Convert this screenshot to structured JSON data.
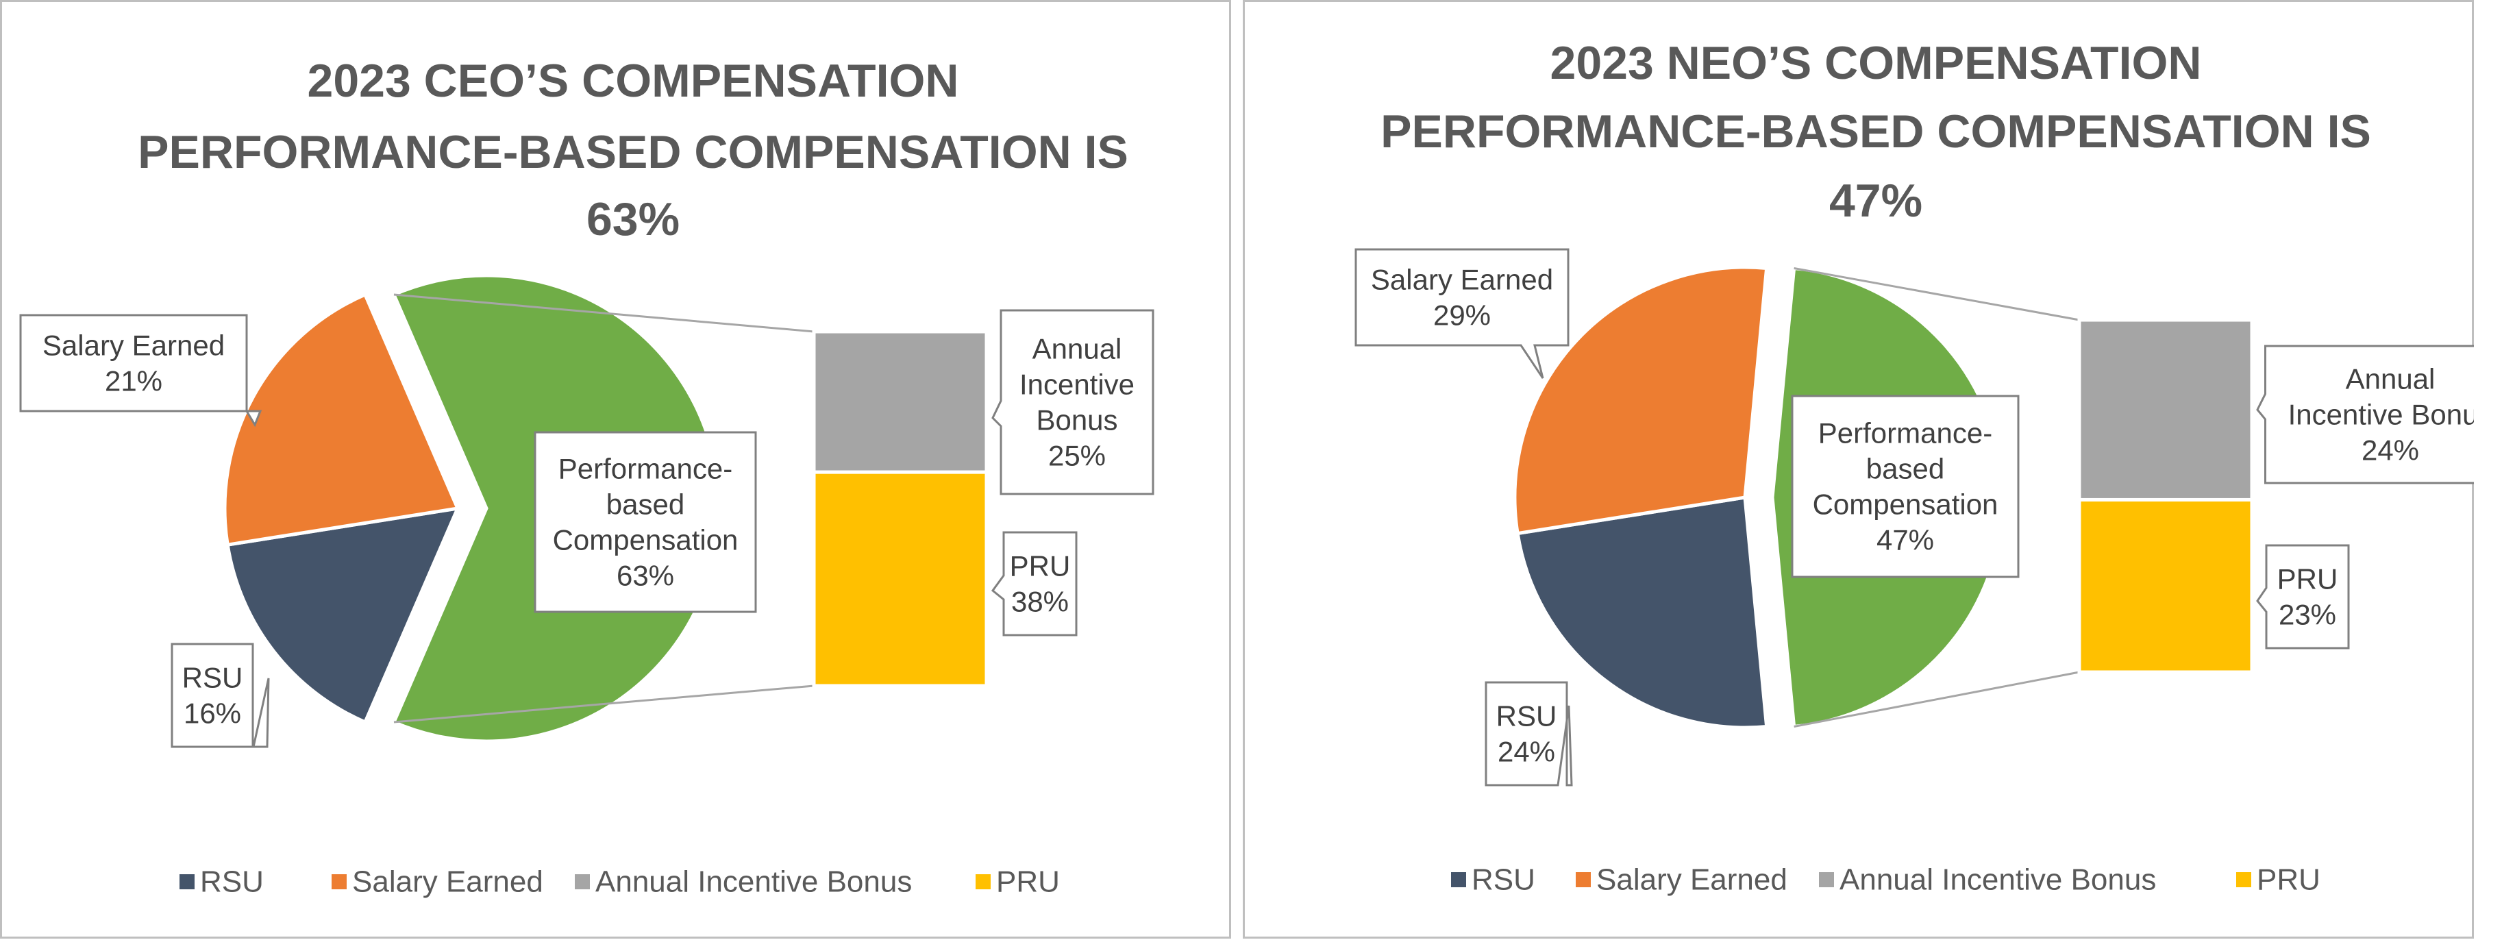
{
  "chart_data": [
    {
      "type": "bar-of-pie",
      "title_lines": [
        "2023 CEO’S COMPENSATION",
        "PERFORMANCE-BASED COMPENSATION IS",
        "63%"
      ],
      "pie": [
        {
          "name": "RSU",
          "value": 16,
          "label": "RSU",
          "pct": "16%"
        },
        {
          "name": "Salary Earned",
          "value": 21,
          "label": "Salary Earned",
          "pct": "21%"
        },
        {
          "name": "Performance-based Compensation",
          "value": 63,
          "label_lines": [
            "Performance-",
            "based",
            "Compensation"
          ],
          "pct": "63%"
        }
      ],
      "bar": [
        {
          "name": "Annual Incentive Bonus",
          "value": 25,
          "label_lines": [
            "Annual",
            "Incentive",
            "Bonus"
          ],
          "pct": "25%"
        },
        {
          "name": "PRU",
          "value": 38,
          "label_lines": [
            "PRU"
          ],
          "pct": "38%"
        }
      ],
      "legend": [
        "RSU",
        "Salary Earned",
        "Annual Incentive Bonus",
        "PRU"
      ]
    },
    {
      "type": "bar-of-pie",
      "title_lines": [
        "2023 NEO’S COMPENSATION",
        "PERFORMANCE-BASED COMPENSATION IS",
        "47%"
      ],
      "pie": [
        {
          "name": "RSU",
          "value": 24,
          "label": "RSU",
          "pct": "24%"
        },
        {
          "name": "Salary Earned",
          "value": 29,
          "label": "Salary Earned",
          "pct": "29%"
        },
        {
          "name": "Performance-based Compensation",
          "value": 47,
          "label_lines": [
            "Performance-",
            "based",
            "Compensation"
          ],
          "pct": "47%"
        }
      ],
      "bar": [
        {
          "name": "Annual Incentive Bonus",
          "value": 24,
          "label_lines": [
            "Annual",
            "Incentive Bonus"
          ],
          "pct": "24%"
        },
        {
          "name": "PRU",
          "value": 23,
          "label_lines": [
            "PRU"
          ],
          "pct": "23%"
        }
      ],
      "legend": [
        "RSU",
        "Salary Earned",
        "Annual Incentive Bonus",
        "PRU"
      ]
    }
  ],
  "colors": {
    "RSU": "#44546a",
    "Salary Earned": "#ed7d31",
    "Performance-based Compensation": "#70ad47",
    "Annual Incentive Bonus": "#a5a5a5",
    "PRU": "#ffc000",
    "title": "#595959",
    "text": "#404040",
    "border": "#bfbfbf",
    "callout_border": "#808080",
    "connector": "#a6a6a6"
  }
}
